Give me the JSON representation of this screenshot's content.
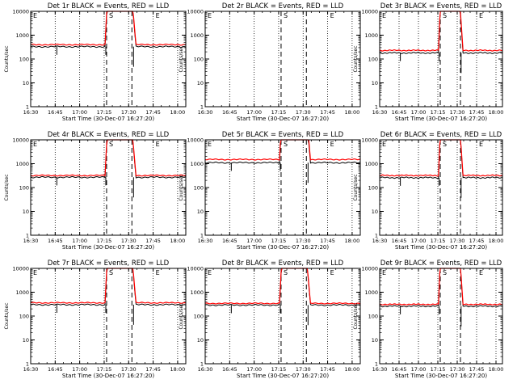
{
  "figure": {
    "background": "#ffffff",
    "events_color": "#000000",
    "lld_color": "#ff0000"
  },
  "chart_data": [
    {
      "type": "line",
      "title": "Det 1r BLACK = Events, RED = LLD",
      "xlabel": "Start Time (30-Dec-07 16:27:20)",
      "ylabel": "Counts/sec",
      "yscale": "log",
      "ylim": [
        1,
        10000
      ],
      "xlim": [
        "16:30",
        "18:05"
      ],
      "x_ticks": [
        "16:30",
        "16:45",
        "17:00",
        "17:15",
        "17:30",
        "17:45",
        "18:00"
      ],
      "y_ticks": [
        "1",
        "10",
        "100",
        "1000",
        "10000"
      ],
      "markers": [
        "E",
        "S",
        "E"
      ],
      "events_base": 330,
      "lld_base": 400,
      "has_data": true
    },
    {
      "type": "line",
      "title": "Det 2r BLACK = Events, RED = LLD",
      "xlabel": "Start Time (30-Dec-07 16:27:20)",
      "ylabel": "Counts/sec",
      "yscale": "log",
      "ylim": [
        1,
        10000
      ],
      "xlim": [
        "16:30",
        "18:05"
      ],
      "x_ticks": [
        "16:30",
        "16:45",
        "17:00",
        "17:15",
        "17:30",
        "17:45",
        "18:00"
      ],
      "y_ticks": [
        "1",
        "10",
        "100",
        "1000",
        "10000"
      ],
      "markers": [
        "E",
        "S",
        "E"
      ],
      "events_base": 0,
      "lld_base": 0,
      "has_data": false
    },
    {
      "type": "line",
      "title": "Det 3r BLACK = Events, RED = LLD",
      "xlabel": "Start Time (30-Dec-07 16:27:20)",
      "ylabel": "Counts/sec",
      "yscale": "log",
      "ylim": [
        1,
        10000
      ],
      "xlim": [
        "16:30",
        "18:05"
      ],
      "x_ticks": [
        "16:30",
        "16:45",
        "17:00",
        "17:15",
        "17:30",
        "17:45",
        "18:00"
      ],
      "y_ticks": [
        "1",
        "10",
        "100",
        "1000",
        "10000"
      ],
      "markers": [
        "E",
        "S",
        "E"
      ],
      "events_base": 180,
      "lld_base": 230,
      "has_data": true
    },
    {
      "type": "line",
      "title": "Det 4r BLACK = Events, RED = LLD",
      "xlabel": "Start Time (30-Dec-07 16:27:20)",
      "ylabel": "Counts/sec",
      "yscale": "log",
      "ylim": [
        1,
        10000
      ],
      "xlim": [
        "16:30",
        "18:05"
      ],
      "x_ticks": [
        "16:30",
        "16:45",
        "17:00",
        "17:15",
        "17:30",
        "17:45",
        "18:00"
      ],
      "y_ticks": [
        "1",
        "10",
        "100",
        "1000",
        "10000"
      ],
      "markers": [
        "E",
        "S",
        "E"
      ],
      "events_base": 270,
      "lld_base": 320,
      "has_data": true
    },
    {
      "type": "line",
      "title": "Det 5r BLACK = Events, RED = LLD",
      "xlabel": "Start Time (30-Dec-07 16:27:20)",
      "ylabel": "Counts/sec",
      "yscale": "log",
      "ylim": [
        1,
        10000
      ],
      "xlim": [
        "16:30",
        "18:05"
      ],
      "x_ticks": [
        "16:30",
        "16:45",
        "17:00",
        "17:15",
        "17:30",
        "17:45",
        "18:00"
      ],
      "y_ticks": [
        "1",
        "10",
        "100",
        "1000",
        "10000"
      ],
      "markers": [
        "E",
        "S",
        "E"
      ],
      "events_base": 1100,
      "lld_base": 1500,
      "has_data": true
    },
    {
      "type": "line",
      "title": "Det 6r BLACK = Events, RED = LLD",
      "xlabel": "Start Time (30-Dec-07 16:27:20)",
      "ylabel": "Counts/sec",
      "yscale": "log",
      "ylim": [
        1,
        10000
      ],
      "xlim": [
        "16:30",
        "18:05"
      ],
      "x_ticks": [
        "16:30",
        "16:45",
        "17:00",
        "17:15",
        "17:30",
        "17:45",
        "18:00"
      ],
      "y_ticks": [
        "1",
        "10",
        "100",
        "1000",
        "10000"
      ],
      "markers": [
        "E",
        "S",
        "E"
      ],
      "events_base": 260,
      "lld_base": 320,
      "has_data": true
    },
    {
      "type": "line",
      "title": "Det 7r BLACK = Events, RED = LLD",
      "xlabel": "Start Time (30-Dec-07 16:27:20)",
      "ylabel": "Counts/sec",
      "yscale": "log",
      "ylim": [
        1,
        10000
      ],
      "xlim": [
        "16:30",
        "18:05"
      ],
      "x_ticks": [
        "16:30",
        "16:45",
        "17:00",
        "17:15",
        "17:30",
        "17:45",
        "18:00"
      ],
      "y_ticks": [
        "1",
        "10",
        "100",
        "1000",
        "10000"
      ],
      "markers": [
        "E",
        "S",
        "E"
      ],
      "events_base": 300,
      "lld_base": 360,
      "has_data": true
    },
    {
      "type": "line",
      "title": "Det 8r BLACK = Events, RED = LLD",
      "xlabel": "Start Time (30-Dec-07 16:27:20)",
      "ylabel": "Counts/sec",
      "yscale": "log",
      "ylim": [
        1,
        10000
      ],
      "xlim": [
        "16:30",
        "18:05"
      ],
      "x_ticks": [
        "16:30",
        "16:45",
        "17:00",
        "17:15",
        "17:30",
        "17:45",
        "18:00"
      ],
      "y_ticks": [
        "1",
        "10",
        "100",
        "1000",
        "10000"
      ],
      "markers": [
        "E",
        "S",
        "E"
      ],
      "events_base": 290,
      "lld_base": 340,
      "has_data": true
    },
    {
      "type": "line",
      "title": "Det 9r BLACK = Events, RED = LLD",
      "xlabel": "Start Time (30-Dec-07 16:27:20)",
      "ylabel": "Counts/sec",
      "yscale": "log",
      "ylim": [
        1,
        10000
      ],
      "xlim": [
        "16:30",
        "18:05"
      ],
      "x_ticks": [
        "16:30",
        "16:45",
        "17:00",
        "17:15",
        "17:30",
        "17:45",
        "18:00"
      ],
      "y_ticks": [
        "1",
        "10",
        "100",
        "1000",
        "10000"
      ],
      "markers": [
        "E",
        "S",
        "E"
      ],
      "events_base": 260,
      "lld_base": 310,
      "has_data": true
    }
  ]
}
